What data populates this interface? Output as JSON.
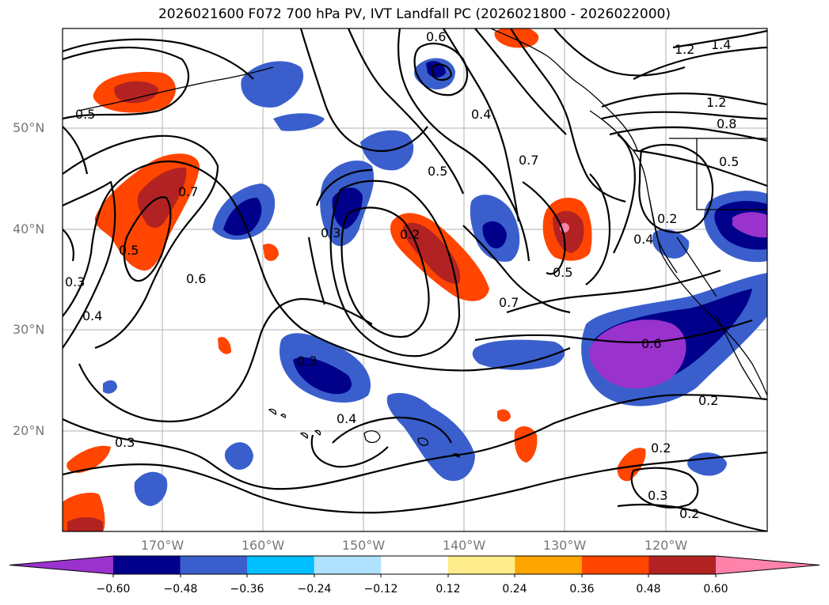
{
  "title": "2026021600 F072 700 hPa PV, IVT Landfall PC (2026021800 - 2026022000)",
  "lat_labels": [
    "50°N",
    "40°N",
    "30°N",
    "20°N"
  ],
  "lon_labels": [
    "170°W",
    "160°W",
    "150°W",
    "140°W",
    "130°W",
    "120°W"
  ],
  "colorbar": {
    "ticks": [
      "−0.60",
      "−0.48",
      "−0.36",
      "−0.24",
      "−0.12",
      "0.12",
      "0.24",
      "0.36",
      "0.48",
      "0.60"
    ],
    "colors": [
      "#9a32cd",
      "#00008b",
      "#3a5fcd",
      "#00bfff",
      "#b0e2ff",
      "#ffffff",
      "#ffec8b",
      "#ffa500",
      "#ff4500",
      "#b22222",
      "#ff82ab"
    ]
  },
  "contour_labels": [
    "0.6",
    "1.2",
    "1.4",
    "1.2",
    "0.8",
    "0.5",
    "0.4",
    "0.7",
    "0.5",
    "0.5",
    "0.7",
    "0.3",
    "0.2",
    "0.2",
    "0.4",
    "0.5",
    "0.6",
    "0.3",
    "0.4",
    "0.3",
    "0.7",
    "0.6",
    "0.2",
    "0.2",
    "0.3",
    "0.2",
    "0.4",
    "0.3",
    "0.5"
  ]
}
